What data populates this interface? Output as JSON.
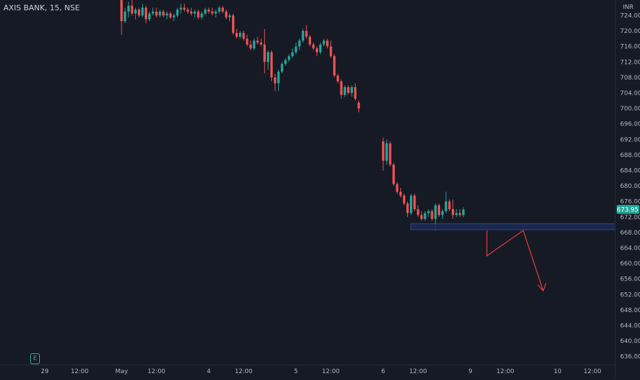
{
  "header": {
    "title": "AXIS BANK, 15, NSE"
  },
  "price_axis": {
    "currency_label": "INR"
  },
  "badges": {
    "earnings": "E"
  },
  "colors": {
    "background": "#161a25",
    "up_candle": "#26a69a",
    "down_candle": "#ef5350",
    "axis_text": "#b2b5be",
    "axis_line": "#2a2e39",
    "current_price_bg": "#26a69a",
    "zone_fill": "#1d2b52",
    "zone_border": "#2962ff",
    "projection": "#e03c3c"
  },
  "chart_data": {
    "type": "candlestick",
    "title": "AXIS BANK, 15, NSE",
    "ylim": [
      634,
      726
    ],
    "y_ticks": [
      724,
      720,
      716,
      712,
      708,
      704,
      700,
      696,
      692,
      688,
      684,
      680,
      676,
      672,
      668,
      664,
      660,
      656,
      652,
      648,
      644,
      640,
      636
    ],
    "current_price": 673.95,
    "x_ticks": [
      {
        "label": "29",
        "bar": -22
      },
      {
        "label": "12:00",
        "bar": -12
      },
      {
        "label": "May",
        "bar": 0
      },
      {
        "label": "12:00",
        "bar": 10
      },
      {
        "label": "4",
        "bar": 25
      },
      {
        "label": "12:00",
        "bar": 35
      },
      {
        "label": "5",
        "bar": 50
      },
      {
        "label": "12:00",
        "bar": 60
      },
      {
        "label": "6",
        "bar": 75
      },
      {
        "label": "12:00",
        "bar": 85
      },
      {
        "label": "9",
        "bar": 100
      },
      {
        "label": "12:00",
        "bar": 110
      },
      {
        "label": "10",
        "bar": 125
      },
      {
        "label": "12:00",
        "bar": 135
      }
    ],
    "candles": [
      [
        0,
        728,
        728.5,
        719,
        722.5
      ],
      [
        1,
        722.5,
        726,
        722,
        725
      ],
      [
        2,
        725,
        727.5,
        723.5,
        726.5
      ],
      [
        3,
        726.5,
        728,
        724,
        724.5
      ],
      [
        4,
        724.5,
        726,
        723,
        725.5
      ],
      [
        5,
        725.5,
        726,
        723.5,
        724
      ],
      [
        6,
        724,
        727,
        723.5,
        726
      ],
      [
        7,
        726,
        726.5,
        722,
        723
      ],
      [
        8,
        723,
        725,
        722.5,
        724.5
      ],
      [
        9,
        724.5,
        726,
        724,
        725
      ],
      [
        10,
        725,
        726,
        723.5,
        724
      ],
      [
        11,
        724,
        725.5,
        723.5,
        725
      ],
      [
        12,
        725,
        725.5,
        723.5,
        724
      ],
      [
        13,
        724,
        725,
        723,
        724.5
      ],
      [
        14,
        724.5,
        725,
        723,
        723.5
      ],
      [
        15,
        723.5,
        724.5,
        722.5,
        724
      ],
      [
        16,
        724,
        726,
        723.5,
        725.5
      ],
      [
        17,
        725.5,
        727,
        724.5,
        726
      ],
      [
        18,
        726,
        727,
        725,
        725.5
      ],
      [
        19,
        725.5,
        726,
        724.5,
        725
      ],
      [
        20,
        725,
        726,
        724,
        724.5
      ],
      [
        21,
        724.5,
        725.5,
        723.5,
        725
      ],
      [
        22,
        725,
        725.5,
        723,
        723.5
      ],
      [
        23,
        723.5,
        725,
        723,
        724.5
      ],
      [
        24,
        724.5,
        726,
        724,
        725.5
      ],
      [
        25,
        725.5,
        726,
        724.5,
        725
      ],
      [
        26,
        725,
        726,
        724,
        724.5
      ],
      [
        27,
        724.5,
        725.5,
        723.5,
        725
      ],
      [
        28,
        725,
        726.5,
        724.5,
        726
      ],
      [
        29,
        726,
        726.5,
        724.5,
        725
      ],
      [
        30,
        725,
        725.5,
        723,
        723.5
      ],
      [
        31,
        723.5,
        724.5,
        722.5,
        724
      ],
      [
        32,
        724,
        724.5,
        719,
        719.5
      ],
      [
        33,
        719.5,
        720.5,
        718,
        718.5
      ],
      [
        34,
        718.5,
        720,
        718,
        719.5
      ],
      [
        35,
        719.5,
        720,
        717.5,
        718
      ],
      [
        36,
        718,
        719,
        716,
        716.5
      ],
      [
        37,
        716.5,
        717.5,
        715,
        715.5
      ],
      [
        38,
        715.5,
        718,
        715,
        717.5
      ],
      [
        39,
        717.5,
        718.5,
        716.5,
        717
      ],
      [
        40,
        717,
        718,
        716,
        716.5
      ],
      [
        41,
        716.5,
        720.5,
        709,
        712
      ],
      [
        42,
        712,
        715,
        710,
        714.5
      ],
      [
        43,
        714.5,
        715,
        707,
        708
      ],
      [
        44,
        708,
        709,
        704.5,
        706.5
      ],
      [
        45,
        706.5,
        710,
        704.5,
        709.5
      ],
      [
        46,
        709.5,
        712,
        709,
        711.5
      ],
      [
        47,
        711.5,
        713,
        711,
        712.5
      ],
      [
        48,
        712.5,
        714,
        712,
        713.5
      ],
      [
        49,
        713.5,
        715.5,
        713,
        714.5
      ],
      [
        50,
        714.5,
        717,
        714,
        716
      ],
      [
        51,
        716,
        718,
        715,
        717.5
      ],
      [
        52,
        717.5,
        720.5,
        717,
        720
      ],
      [
        53,
        720,
        721.5,
        718,
        718.5
      ],
      [
        54,
        718.5,
        719,
        716,
        716.5
      ],
      [
        55,
        716.5,
        717,
        715,
        715.5
      ],
      [
        56,
        715.5,
        716,
        713.5,
        714.5
      ],
      [
        57,
        714.5,
        717,
        714,
        716.5
      ],
      [
        58,
        716.5,
        718,
        716,
        717.5
      ],
      [
        59,
        717.5,
        718,
        715.5,
        716
      ],
      [
        60,
        716,
        717.5,
        713,
        713.5
      ],
      [
        61,
        713.5,
        714,
        708,
        708.5
      ],
      [
        62,
        708.5,
        709,
        706.5,
        707
      ],
      [
        63,
        707,
        707.5,
        702.5,
        703.5
      ],
      [
        64,
        703.5,
        706,
        703,
        705.5
      ],
      [
        65,
        705.5,
        706,
        703.5,
        704
      ],
      [
        66,
        704,
        706,
        703,
        705.5
      ],
      [
        67,
        705.5,
        706.5,
        702,
        702.5
      ],
      [
        68,
        701.5,
        702,
        699,
        700
      ],
      [
        75,
        691.5,
        692.5,
        684,
        686.5
      ],
      [
        76,
        686.5,
        692,
        685.5,
        691
      ],
      [
        77,
        691,
        691.5,
        685,
        685.5
      ],
      [
        78,
        685.5,
        686,
        680,
        680.5
      ],
      [
        79,
        680.5,
        681,
        678,
        678.5
      ],
      [
        80,
        678.5,
        679.5,
        677,
        677.5
      ],
      [
        81,
        677.5,
        678,
        675,
        675.5
      ],
      [
        82,
        675.5,
        676,
        672,
        673
      ],
      [
        83,
        673,
        678,
        672.5,
        677.5
      ],
      [
        84,
        677.5,
        678,
        673.5,
        674
      ],
      [
        85,
        674,
        675,
        672,
        672.5
      ],
      [
        86,
        672.5,
        673.5,
        671,
        671.5
      ],
      [
        87,
        671.5,
        673.5,
        671,
        673
      ],
      [
        88,
        673,
        674,
        672,
        673.5
      ],
      [
        89,
        673.5,
        674,
        671,
        671.5
      ],
      [
        90,
        671.5,
        675.5,
        668.5,
        675
      ],
      [
        91,
        675,
        675.5,
        672,
        672.5
      ],
      [
        92,
        672.5,
        674,
        671.5,
        673.5
      ],
      [
        93,
        673.5,
        678.5,
        673,
        676
      ],
      [
        94,
        676,
        676.5,
        673.5,
        674
      ],
      [
        95,
        674,
        676.5,
        671.5,
        672.5
      ],
      [
        96,
        672.5,
        674,
        672,
        673
      ],
      [
        97,
        673,
        674,
        672,
        672.5
      ],
      [
        98,
        672.5,
        674.5,
        672,
        673.95
      ]
    ]
  }
}
